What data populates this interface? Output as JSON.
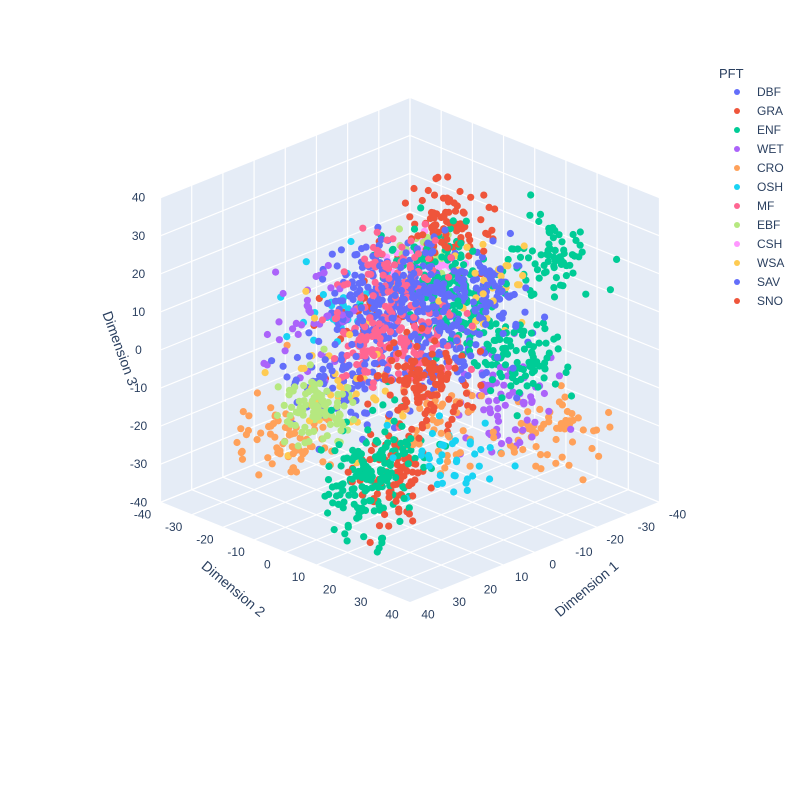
{
  "chart_data": {
    "type": "scatter",
    "subtype": "scatter3d",
    "title": "",
    "axes": {
      "x": {
        "label": "Dimension 1",
        "range": [
          -40,
          40
        ],
        "ticks": [
          -40,
          -30,
          -20,
          -10,
          0,
          10,
          20,
          30,
          40
        ]
      },
      "y": {
        "label": "Dimension 2",
        "range": [
          -40,
          40
        ],
        "ticks": [
          -40,
          -30,
          -20,
          -10,
          0,
          10,
          20,
          30,
          40
        ]
      },
      "z": {
        "label": "Dimension 3",
        "range": [
          -40,
          40
        ],
        "ticks": [
          -40,
          -30,
          -20,
          -10,
          0,
          10,
          20,
          30,
          40
        ]
      }
    },
    "grid": true,
    "legend": {
      "title": "PFT",
      "placement": "top-right"
    },
    "series": [
      {
        "name": "DBF",
        "color": "#636efa",
        "clusters": [
          {
            "x": -5,
            "y": -15,
            "z": 8,
            "n": 140,
            "spread": 6
          },
          {
            "x": 8,
            "y": 10,
            "z": 22,
            "n": 90,
            "spread": 5
          },
          {
            "x": -20,
            "y": 5,
            "z": 12,
            "n": 80,
            "spread": 5
          },
          {
            "x": 15,
            "y": -5,
            "z": -5,
            "n": 90,
            "spread": 6
          }
        ]
      },
      {
        "name": "GRA",
        "color": "#ef553b",
        "clusters": [
          {
            "x": -18,
            "y": -5,
            "z": 25,
            "n": 90,
            "spread": 5
          },
          {
            "x": 20,
            "y": 25,
            "z": 5,
            "n": 110,
            "spread": 5
          },
          {
            "x": 15,
            "y": 10,
            "z": -25,
            "n": 90,
            "spread": 5
          }
        ]
      },
      {
        "name": "ENF",
        "color": "#00cc96",
        "clusters": [
          {
            "x": -25,
            "y": -10,
            "z": 0,
            "n": 110,
            "spread": 6
          },
          {
            "x": -10,
            "y": -5,
            "z": 15,
            "n": 100,
            "spread": 6
          },
          {
            "x": 25,
            "y": 15,
            "z": -15,
            "n": 100,
            "spread": 5
          },
          {
            "x": -5,
            "y": 30,
            "z": 5,
            "n": 90,
            "spread": 5
          },
          {
            "x": 20,
            "y": 5,
            "z": -30,
            "n": 80,
            "spread": 5
          },
          {
            "x": -30,
            "y": 15,
            "z": 20,
            "n": 70,
            "spread": 5
          }
        ]
      },
      {
        "name": "WET",
        "color": "#ab63fa",
        "clusters": [
          {
            "x": -10,
            "y": 20,
            "z": -10,
            "n": 70,
            "spread": 6
          },
          {
            "x": 10,
            "y": -20,
            "z": 5,
            "n": 40,
            "spread": 6
          }
        ]
      },
      {
        "name": "CRO",
        "color": "#ffa15a",
        "clusters": [
          {
            "x": 25,
            "y": -15,
            "z": -20,
            "n": 70,
            "spread": 5
          },
          {
            "x": -20,
            "y": 25,
            "z": -20,
            "n": 60,
            "spread": 5
          },
          {
            "x": 10,
            "y": 20,
            "z": -10,
            "n": 50,
            "spread": 6
          }
        ]
      },
      {
        "name": "OSH",
        "color": "#19d3f3",
        "clusters": [
          {
            "x": 15,
            "y": 30,
            "z": -15,
            "n": 40,
            "spread": 5
          },
          {
            "x": -5,
            "y": -30,
            "z": 0,
            "n": 30,
            "spread": 6
          }
        ]
      },
      {
        "name": "MF",
        "color": "#ff6692",
        "clusters": [
          {
            "x": 5,
            "y": 0,
            "z": 5,
            "n": 180,
            "spread": 7
          },
          {
            "x": 10,
            "y": 5,
            "z": 25,
            "n": 60,
            "spread": 5
          }
        ]
      },
      {
        "name": "EBF",
        "color": "#b6e880",
        "clusters": [
          {
            "x": 30,
            "y": 0,
            "z": -5,
            "n": 90,
            "spread": 4
          },
          {
            "x": -25,
            "y": -20,
            "z": 10,
            "n": 30,
            "spread": 4
          }
        ]
      },
      {
        "name": "CSH",
        "color": "#ff97ff",
        "clusters": [
          {
            "x": -30,
            "y": -25,
            "z": 5,
            "n": 30,
            "spread": 4
          }
        ]
      },
      {
        "name": "WSA",
        "color": "#fecb52",
        "clusters": [
          {
            "x": 20,
            "y": -5,
            "z": -5,
            "n": 40,
            "spread": 7
          },
          {
            "x": -15,
            "y": 10,
            "z": 15,
            "n": 30,
            "spread": 6
          }
        ]
      },
      {
        "name": "SAV",
        "color": "#636efa",
        "clusters": [
          {
            "x": -5,
            "y": 0,
            "z": 0,
            "n": 120,
            "spread": 7
          },
          {
            "x": 5,
            "y": 25,
            "z": 15,
            "n": 50,
            "spread": 6
          }
        ]
      },
      {
        "name": "SNO",
        "color": "#ef553b",
        "clusters": [
          {
            "x": -15,
            "y": -25,
            "z": -5,
            "n": 30,
            "spread": 8
          }
        ]
      }
    ],
    "camera": {
      "azimuth_deg": 45,
      "elevation_deg": 25
    }
  }
}
